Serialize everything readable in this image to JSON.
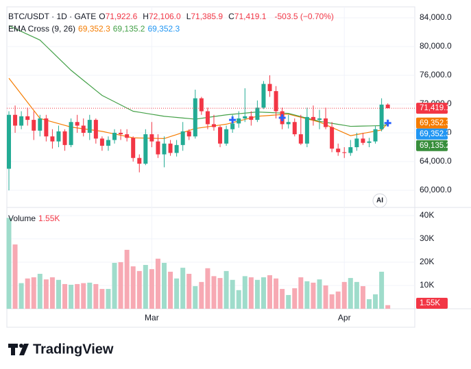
{
  "chart_data": {
    "type": "candlestick",
    "symbol": "BTC/USDT · 1D · GATE",
    "ohlc_labels": [
      "O",
      "H",
      "L",
      "C"
    ],
    "ohlc_values": [
      "71,922.6",
      "72,106.0",
      "71,385.9",
      "71,419.1"
    ],
    "change": "-503.5 (−0.70%)",
    "indicator": "EMA Cross (9, 26)",
    "categories": [
      null,
      null,
      null,
      null,
      null,
      null,
      null,
      null,
      null,
      null,
      null,
      null,
      null,
      null,
      null,
      null,
      null,
      null,
      null,
      null,
      null,
      null,
      null,
      "Mar",
      null,
      null,
      null,
      null,
      null,
      null,
      null,
      null,
      null,
      null,
      null,
      null,
      null,
      null,
      null,
      null,
      null,
      null,
      null,
      null,
      null,
      null,
      null,
      null,
      null,
      null,
      null,
      null,
      null,
      null,
      "Apr",
      null,
      null,
      null,
      null,
      null,
      null,
      null
    ],
    "up_color": "#22ab94",
    "down_color": "#f23645",
    "up_volume_color": "#9fdccb",
    "down_volume_color": "#f7a9b3",
    "open": [
      63000,
      70500,
      69000,
      70300,
      69800,
      68300,
      70000,
      67500,
      66800,
      68200,
      66300,
      69500,
      69000,
      68000,
      69800,
      67200,
      66200,
      67000,
      68000,
      67800,
      67300,
      64500,
      63700,
      67800,
      66800,
      65000,
      66500,
      65200,
      66300,
      68200,
      67500,
      72800,
      71000,
      69200,
      68800,
      66500,
      68500,
      69300,
      70000,
      70300,
      69800,
      71500,
      74800,
      73800,
      71000,
      69200,
      69500,
      67800,
      66500,
      70200,
      69800,
      70000,
      68800,
      65800,
      65300,
      65200,
      66000,
      67200,
      66600,
      66800,
      68500,
      71922.6
    ],
    "high": [
      71000,
      71800,
      71000,
      71500,
      71000,
      70500,
      70500,
      68500,
      69000,
      68500,
      70000,
      70500,
      70000,
      70500,
      70000,
      67500,
      67500,
      68500,
      68500,
      68500,
      67500,
      65000,
      68500,
      69500,
      67800,
      67500,
      67000,
      67000,
      69500,
      68500,
      74000,
      73000,
      71500,
      70500,
      69000,
      69000,
      70500,
      71000,
      74200,
      71000,
      72500,
      75200,
      76000,
      74500,
      71500,
      70500,
      70000,
      70500,
      71500,
      71800,
      71200,
      71500,
      69500,
      66500,
      66000,
      67000,
      68000,
      68000,
      67300,
      69000,
      72800,
      72106
    ],
    "low": [
      60000,
      68000,
      68500,
      69000,
      67000,
      67500,
      66800,
      65800,
      66000,
      65500,
      66000,
      68000,
      67500,
      67000,
      66500,
      65500,
      65500,
      66500,
      67000,
      66800,
      64000,
      62500,
      63500,
      66000,
      64500,
      63200,
      64800,
      64700,
      65500,
      67000,
      67200,
      70500,
      68500,
      68300,
      66000,
      66200,
      68000,
      68700,
      69500,
      69000,
      69500,
      71300,
      73000,
      70000,
      68500,
      68600,
      67500,
      66300,
      66000,
      69000,
      68500,
      68500,
      65300,
      64800,
      64500,
      64800,
      65500,
      66300,
      66000,
      66500,
      68200,
      71385.9
    ],
    "close": [
      70500,
      69000,
      70300,
      69800,
      68300,
      70000,
      67500,
      66800,
      68200,
      66300,
      69500,
      69000,
      68000,
      69800,
      67200,
      66200,
      67000,
      68000,
      67800,
      67300,
      64500,
      63700,
      67800,
      66800,
      65000,
      66500,
      65200,
      66300,
      68200,
      67500,
      72800,
      71000,
      69200,
      68800,
      66500,
      68500,
      69300,
      70000,
      70300,
      69800,
      71500,
      74800,
      73800,
      71000,
      69200,
      69500,
      67800,
      66500,
      70200,
      69800,
      70000,
      68800,
      65800,
      65300,
      65200,
      66000,
      67200,
      66600,
      66800,
      68500,
      71922.6,
      71419.1
    ],
    "last_price_label": "71,419.1",
    "series": [
      {
        "name": "EMA 9",
        "color": "#f57c00",
        "last_label": "69,352.3",
        "values": [
          75600,
          74480,
          73360,
          72240,
          71120,
          70000,
          69760,
          69520,
          69280,
          69040,
          68800,
          68680,
          68560,
          68440,
          68320,
          68200,
          68020,
          67840,
          67660,
          67480,
          67300,
          67280,
          67260,
          67240,
          67220,
          67200,
          67480,
          67760,
          68040,
          68320,
          68600,
          68720,
          68840,
          68960,
          69080,
          69200,
          69420,
          69640,
          69860,
          70080,
          70300,
          70360,
          70420,
          70480,
          70540,
          70600,
          70380,
          70160,
          69940,
          69720,
          69500,
          69120,
          68740,
          68360,
          67980,
          67600,
          67760,
          67920,
          68080,
          68240,
          68400,
          69352.3
        ]
      },
      {
        "name": "EMA 26",
        "color": "#43a047",
        "last_label": "69,135.2",
        "values": [
          82900,
          82500,
          82100,
          81700,
          81300,
          80900,
          80060,
          79220,
          78380,
          77540,
          76700,
          76000,
          75300,
          74600,
          73900,
          73200,
          72760,
          72320,
          71880,
          71440,
          71000,
          70860,
          70720,
          70580,
          70440,
          70300,
          70220,
          70140,
          70060,
          69980,
          69900,
          70020,
          70140,
          70260,
          70380,
          70500,
          70580,
          70660,
          70740,
          70820,
          70900,
          70860,
          70820,
          70780,
          70740,
          70700,
          70480,
          70260,
          70040,
          69820,
          69600,
          69460,
          69320,
          69180,
          69040,
          68900,
          68920,
          68940,
          68960,
          68980,
          69000,
          69135.2
        ]
      }
    ],
    "crosses": {
      "color": "#2962ff",
      "last_label": "69,352.3",
      "indices": [
        36,
        44,
        61
      ],
      "values": [
        69800,
        70100,
        69352.3
      ]
    },
    "ylim": [
      57714,
      85524
    ],
    "yticks": [
      {
        "value": 84000,
        "label": "84,000.0"
      },
      {
        "value": 80000,
        "label": "80,000.0"
      },
      {
        "value": 76000,
        "label": "76,000.0"
      },
      {
        "value": 72000,
        "label": "72,000.0"
      },
      {
        "value": 68000,
        "label": "68,000.0"
      },
      {
        "value": 64000,
        "label": "64,000.0"
      },
      {
        "value": 60000,
        "label": "60,000.0"
      }
    ],
    "volume": {
      "name": "Volume",
      "values": [
        39000,
        27600,
        11000,
        13000,
        13500,
        15000,
        12600,
        13500,
        12400,
        10600,
        10300,
        10600,
        11000,
        11200,
        10600,
        8500,
        8500,
        19700,
        20000,
        25300,
        18200,
        16200,
        18800,
        17000,
        21500,
        19700,
        15900,
        13000,
        17600,
        15000,
        9700,
        11500,
        17400,
        14000,
        13200,
        16200,
        12400,
        8000,
        14000,
        13500,
        12400,
        13500,
        14400,
        13000,
        8500,
        5900,
        8800,
        13500,
        11800,
        11200,
        12600,
        10000,
        6200,
        7400,
        11500,
        13200,
        11500,
        9700,
        4100,
        6200,
        15900,
        1550
      ],
      "last_label": "1.55K",
      "ylim": [
        0,
        43200
      ],
      "yticks": [
        {
          "value": 40000,
          "label": "40K"
        },
        {
          "value": 30000,
          "label": "30K"
        },
        {
          "value": 20000,
          "label": "20K"
        },
        {
          "value": 10000,
          "label": "10K"
        }
      ]
    },
    "badge": "AI",
    "brand": "TradingView"
  }
}
